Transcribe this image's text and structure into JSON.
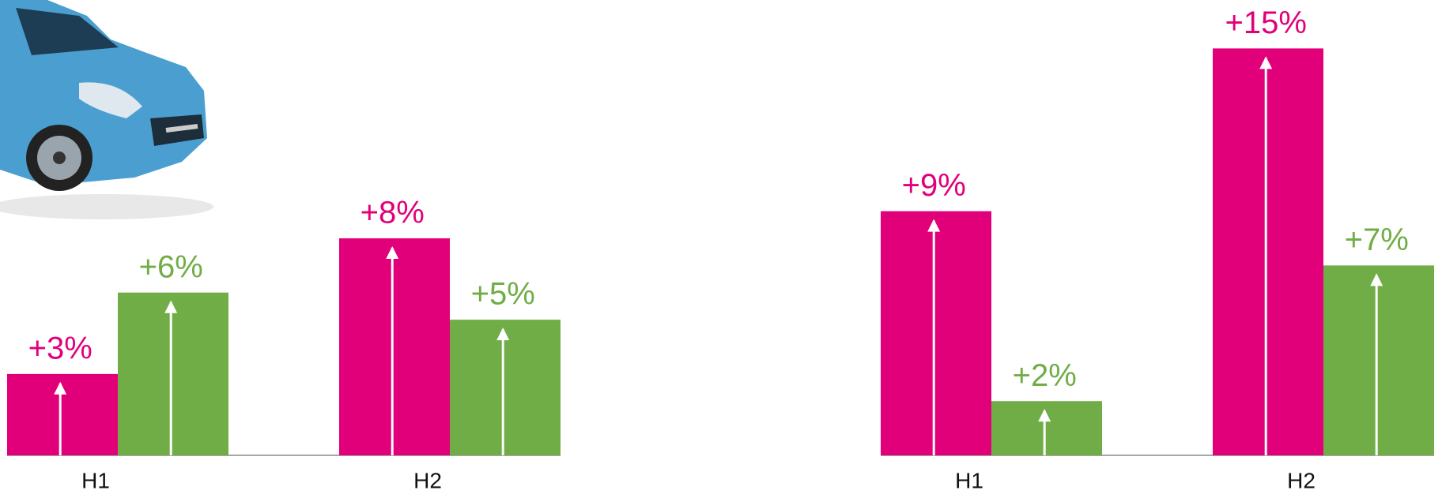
{
  "chart_data": [
    {
      "type": "bar",
      "categories": [
        "H1",
        "H2"
      ],
      "series": [
        {
          "color": "#e2007a",
          "values": [
            3,
            8
          ],
          "value_labels": [
            "+3%",
            "+8%"
          ]
        },
        {
          "color": "#70ad47",
          "values": [
            6,
            5
          ],
          "value_labels": [
            "+6%",
            "+5%"
          ]
        }
      ],
      "ylim": [
        0,
        16
      ]
    },
    {
      "type": "bar",
      "categories": [
        "H1",
        "H2"
      ],
      "series": [
        {
          "color": "#e2007a",
          "values": [
            9,
            15
          ],
          "value_labels": [
            "+9%",
            "+15%"
          ]
        },
        {
          "color": "#70ad47",
          "values": [
            2,
            7
          ],
          "value_labels": [
            "+2%",
            "+7%"
          ]
        }
      ],
      "ylim": [
        0,
        16
      ]
    }
  ]
}
